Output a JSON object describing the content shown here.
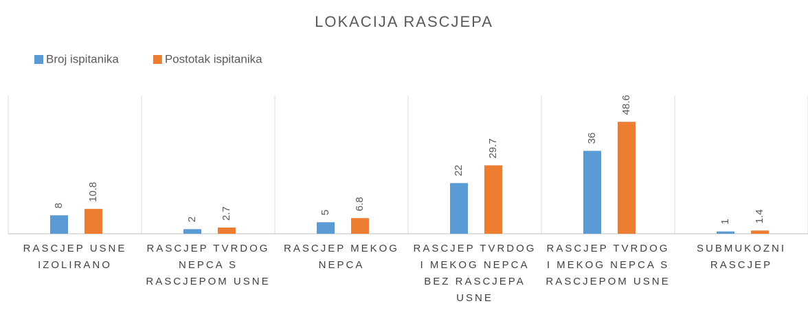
{
  "chart_data": {
    "type": "bar",
    "title": "LOKACIJA RASCJEPA",
    "categories": [
      "RASCJEP USNE IZOLIRANO",
      "RASCJEP TVRDOG NEPCA S RASCJEPOM USNE",
      "RASCJEP MEKOG NEPCA",
      "RASCJEP TVRDOG I MEKOG NEPCA BEZ RASCJEPA USNE",
      "RASCJEP TVRDOG I MEKOG NEPCA S RASCJEPOM USNE",
      "SUBMUKOZNI RASCJEP"
    ],
    "series": [
      {
        "name": "Broj ispitanika",
        "color": "#5b9bd5",
        "values": [
          8,
          2,
          5,
          22,
          36,
          1
        ]
      },
      {
        "name": "Postotak ispitanika",
        "color": "#ed7d31",
        "values": [
          10.8,
          2.7,
          6.8,
          29.7,
          48.6,
          1.4
        ]
      }
    ],
    "ylim": [
      0,
      60
    ],
    "legend": "top-left"
  }
}
